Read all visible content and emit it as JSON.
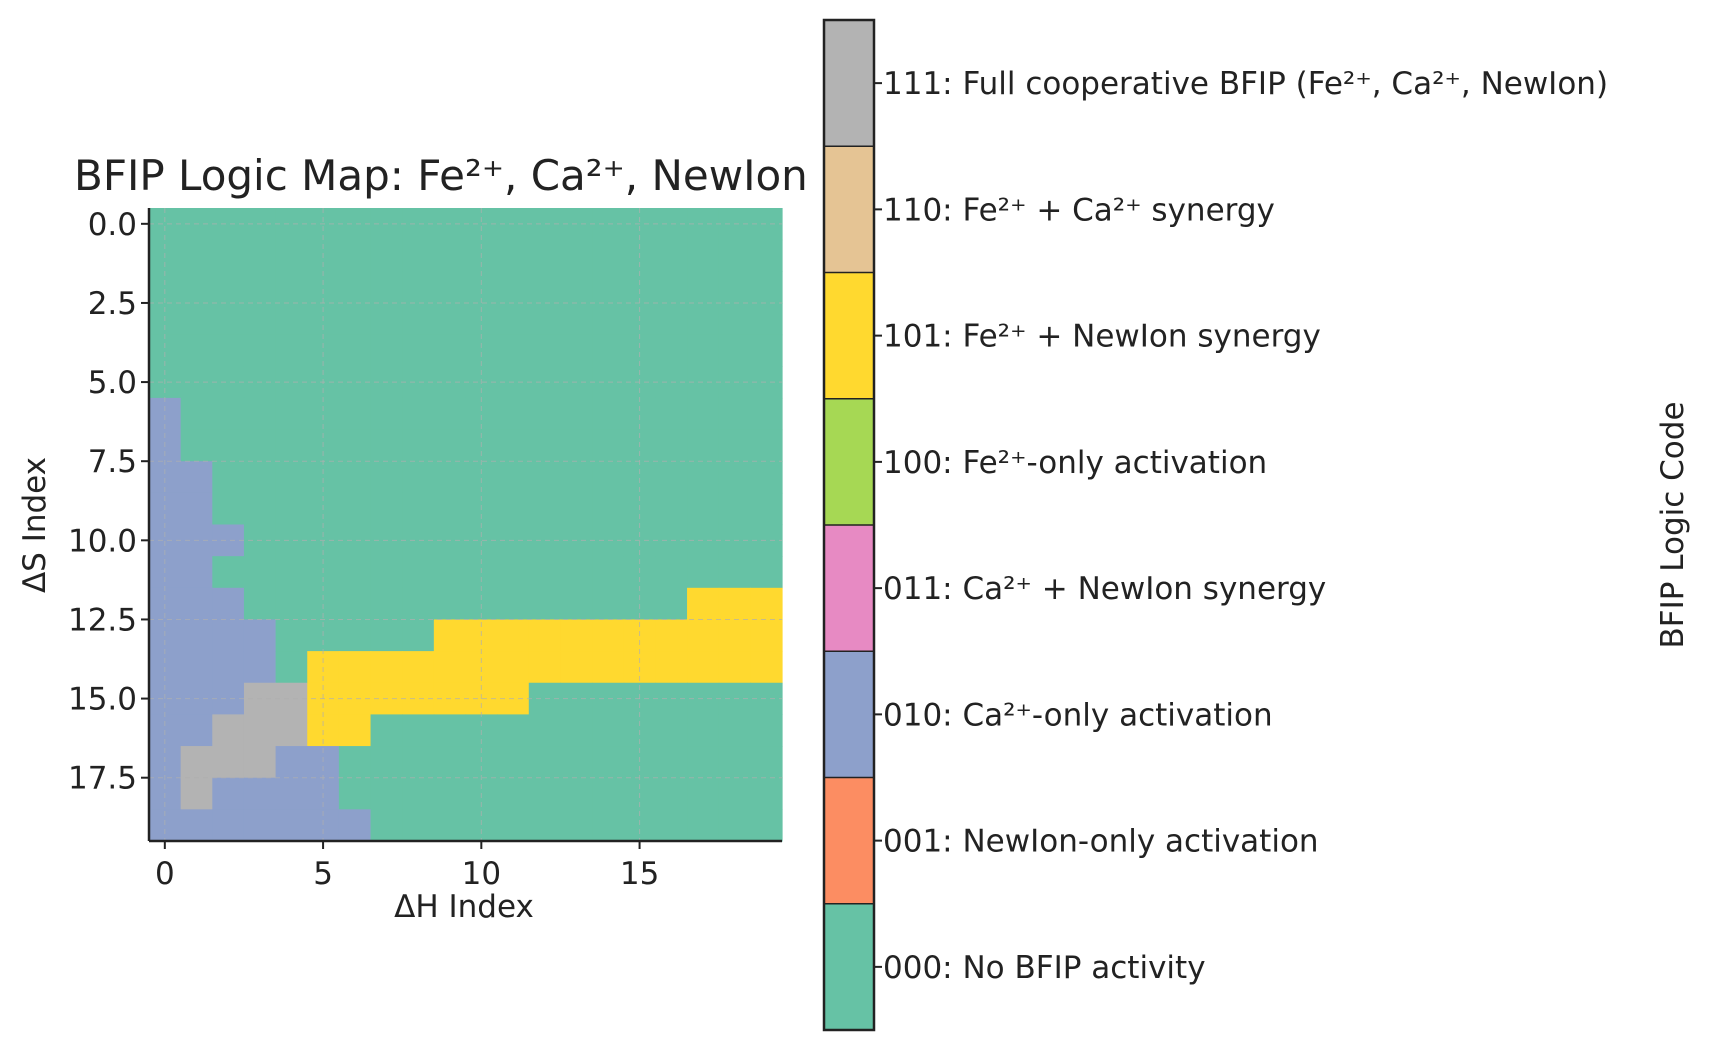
{
  "chart_data": {
    "type": "heatmap",
    "title": "BFIP Logic Map: Fe²⁺, Ca²⁺, NewIon",
    "xlabel": "ΔH Index",
    "ylabel": "ΔS Index",
    "colorbar_label": "BFIP Logic Code",
    "x_range": [
      -0.5,
      19.5
    ],
    "y_range": [
      -0.5,
      19.5
    ],
    "y_inverted": true,
    "grid": true,
    "x_ticks": [
      0,
      5,
      10,
      15
    ],
    "x_tick_labels": [
      "0",
      "5",
      "10",
      "15"
    ],
    "y_ticks": [
      0,
      2.5,
      5,
      7.5,
      10,
      12.5,
      15,
      17.5
    ],
    "y_tick_labels": [
      "0.0",
      "2.5",
      "5.0",
      "7.5",
      "10.0",
      "12.5",
      "15.0",
      "17.5"
    ],
    "categories": [
      {
        "code": 0,
        "label": "000: No BFIP activity",
        "color": "#66c2a5"
      },
      {
        "code": 1,
        "label": "001: NewIon-only activation",
        "color": "#fc8d62"
      },
      {
        "code": 2,
        "label": "010: Ca²⁺-only activation",
        "color": "#8da0cb"
      },
      {
        "code": 3,
        "label": "011: Ca²⁺ + NewIon synergy",
        "color": "#e78ac3"
      },
      {
        "code": 4,
        "label": "100: Fe²⁺-only activation",
        "color": "#a6d854"
      },
      {
        "code": 5,
        "label": "101: Fe²⁺ + NewIon synergy",
        "color": "#ffd92f"
      },
      {
        "code": 6,
        "label": "110: Fe²⁺ + Ca²⁺ synergy",
        "color": "#e5c494"
      },
      {
        "code": 7,
        "label": "111: Full cooperative BFIP (Fe²⁺, Ca²⁺, NewIon)",
        "color": "#b3b3b3"
      }
    ],
    "grid_values": [
      [
        0,
        0,
        0,
        0,
        0,
        0,
        0,
        0,
        0,
        0,
        0,
        0,
        0,
        0,
        0,
        0,
        0,
        0,
        0,
        0
      ],
      [
        0,
        0,
        0,
        0,
        0,
        0,
        0,
        0,
        0,
        0,
        0,
        0,
        0,
        0,
        0,
        0,
        0,
        0,
        0,
        0
      ],
      [
        0,
        0,
        0,
        0,
        0,
        0,
        0,
        0,
        0,
        0,
        0,
        0,
        0,
        0,
        0,
        0,
        0,
        0,
        0,
        0
      ],
      [
        0,
        0,
        0,
        0,
        0,
        0,
        0,
        0,
        0,
        0,
        0,
        0,
        0,
        0,
        0,
        0,
        0,
        0,
        0,
        0
      ],
      [
        0,
        0,
        0,
        0,
        0,
        0,
        0,
        0,
        0,
        0,
        0,
        0,
        0,
        0,
        0,
        0,
        0,
        0,
        0,
        0
      ],
      [
        0,
        0,
        0,
        0,
        0,
        0,
        0,
        0,
        0,
        0,
        0,
        0,
        0,
        0,
        0,
        0,
        0,
        0,
        0,
        0
      ],
      [
        2,
        0,
        0,
        0,
        0,
        0,
        0,
        0,
        0,
        0,
        0,
        0,
        0,
        0,
        0,
        0,
        0,
        0,
        0,
        0
      ],
      [
        2,
        0,
        0,
        0,
        0,
        0,
        0,
        0,
        0,
        0,
        0,
        0,
        0,
        0,
        0,
        0,
        0,
        0,
        0,
        0
      ],
      [
        2,
        2,
        0,
        0,
        0,
        0,
        0,
        0,
        0,
        0,
        0,
        0,
        0,
        0,
        0,
        0,
        0,
        0,
        0,
        0
      ],
      [
        2,
        2,
        0,
        0,
        0,
        0,
        0,
        0,
        0,
        0,
        0,
        0,
        0,
        0,
        0,
        0,
        0,
        0,
        0,
        0
      ],
      [
        2,
        2,
        2,
        0,
        0,
        0,
        0,
        0,
        0,
        0,
        0,
        0,
        0,
        0,
        0,
        0,
        0,
        0,
        0,
        0
      ],
      [
        2,
        2,
        0,
        0,
        0,
        0,
        0,
        0,
        0,
        0,
        0,
        0,
        0,
        0,
        0,
        0,
        0,
        0,
        0,
        0
      ],
      [
        2,
        2,
        2,
        0,
        0,
        0,
        0,
        0,
        0,
        0,
        0,
        0,
        0,
        0,
        0,
        0,
        0,
        5,
        5,
        5
      ],
      [
        2,
        2,
        2,
        2,
        0,
        0,
        0,
        0,
        0,
        5,
        5,
        5,
        5,
        5,
        5,
        5,
        5,
        5,
        5,
        5
      ],
      [
        2,
        2,
        2,
        2,
        0,
        5,
        5,
        5,
        5,
        5,
        5,
        5,
        5,
        5,
        5,
        5,
        5,
        5,
        5,
        5
      ],
      [
        2,
        2,
        2,
        7,
        7,
        5,
        5,
        5,
        5,
        5,
        5,
        5,
        0,
        0,
        0,
        0,
        0,
        0,
        0,
        0
      ],
      [
        2,
        2,
        7,
        7,
        7,
        5,
        5,
        0,
        0,
        0,
        0,
        0,
        0,
        0,
        0,
        0,
        0,
        0,
        0,
        0
      ],
      [
        2,
        7,
        7,
        7,
        2,
        2,
        0,
        0,
        0,
        0,
        0,
        0,
        0,
        0,
        0,
        0,
        0,
        0,
        0,
        0
      ],
      [
        2,
        7,
        2,
        2,
        2,
        2,
        0,
        0,
        0,
        0,
        0,
        0,
        0,
        0,
        0,
        0,
        0,
        0,
        0,
        0
      ],
      [
        2,
        2,
        2,
        2,
        2,
        2,
        2,
        0,
        0,
        0,
        0,
        0,
        0,
        0,
        0,
        0,
        0,
        0,
        0,
        0
      ]
    ]
  }
}
